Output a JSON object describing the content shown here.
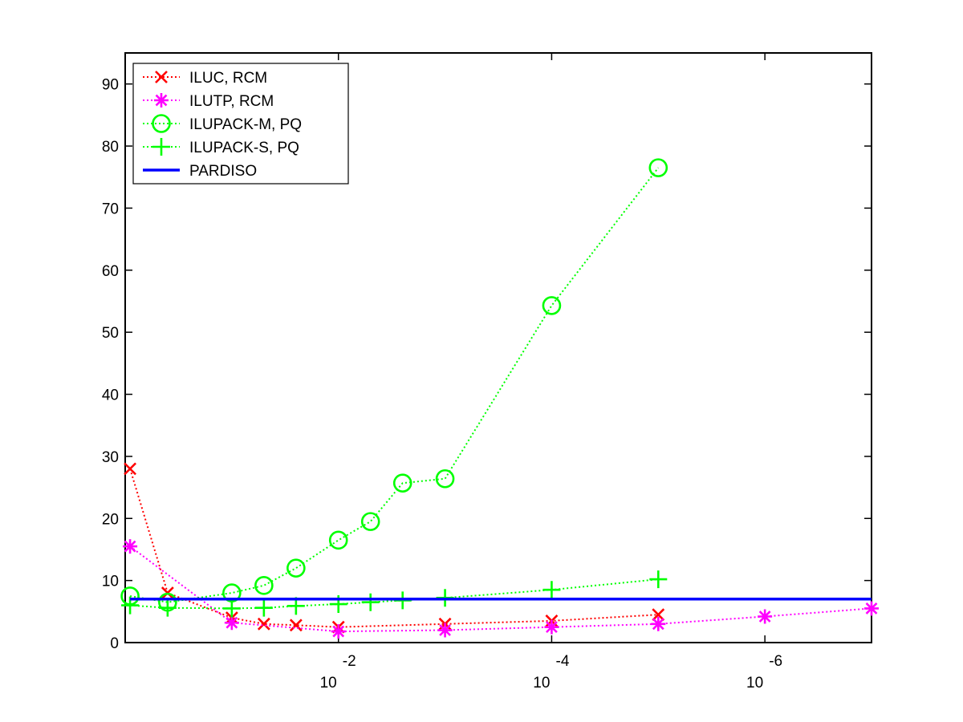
{
  "chart_data": {
    "type": "line",
    "x_scale": "log",
    "x_reversed": true,
    "xlim": [
      1,
      1e-07
    ],
    "ylim": [
      0,
      95
    ],
    "grid": false,
    "legend_position": "top-left",
    "x_ticks": [
      {
        "value": 0.01,
        "base": "10",
        "exp": "-2"
      },
      {
        "value": 0.0001,
        "base": "10",
        "exp": "-4"
      },
      {
        "value": 1e-06,
        "base": "10",
        "exp": "-6"
      }
    ],
    "y_ticks": [
      "0",
      "10",
      "20",
      "30",
      "40",
      "50",
      "60",
      "70",
      "80",
      "90"
    ],
    "series": [
      {
        "name": "ILUC, RCM",
        "color": "#ff0000",
        "marker": "x",
        "line": "dotted",
        "x": [
          0.9,
          0.4,
          0.1,
          0.05,
          0.025,
          0.01,
          0.001,
          0.0001,
          1e-05
        ],
        "y": [
          28,
          8,
          4,
          3,
          2.8,
          2.5,
          3,
          3.5,
          4.5
        ]
      },
      {
        "name": "ILUTP, RCM",
        "color": "#ff00ff",
        "marker": "star",
        "line": "dotted",
        "x": [
          0.9,
          0.1,
          0.01,
          0.001,
          0.0001,
          1e-05,
          1e-06,
          1e-07
        ],
        "y": [
          15.5,
          3.2,
          1.8,
          2,
          2.5,
          3,
          4.2,
          5.5
        ]
      },
      {
        "name": "ILUPACK-M, PQ",
        "color": "#00ff00",
        "marker": "circle",
        "line": "dotted",
        "x": [
          0.9,
          0.4,
          0.1,
          0.05,
          0.025,
          0.01,
          0.005,
          0.0025,
          0.001,
          0.0001,
          1e-05
        ],
        "y": [
          7.5,
          6.5,
          8,
          9.2,
          12,
          16.5,
          19.5,
          25.7,
          26.4,
          54.3,
          76.5
        ]
      },
      {
        "name": "ILUPACK-S, PQ",
        "color": "#00ff00",
        "marker": "plus",
        "line": "dotted",
        "x": [
          0.9,
          0.4,
          0.1,
          0.05,
          0.025,
          0.01,
          0.005,
          0.0025,
          0.001,
          0.0001,
          1e-05
        ],
        "y": [
          6,
          5.6,
          5.5,
          5.6,
          5.9,
          6.2,
          6.5,
          6.8,
          7.2,
          8.5,
          10.2
        ]
      },
      {
        "name": "PARDISO",
        "color": "#0000ff",
        "marker": "none",
        "line": "solid",
        "x": [
          0.9,
          1e-07
        ],
        "y": [
          7,
          7
        ]
      }
    ]
  }
}
